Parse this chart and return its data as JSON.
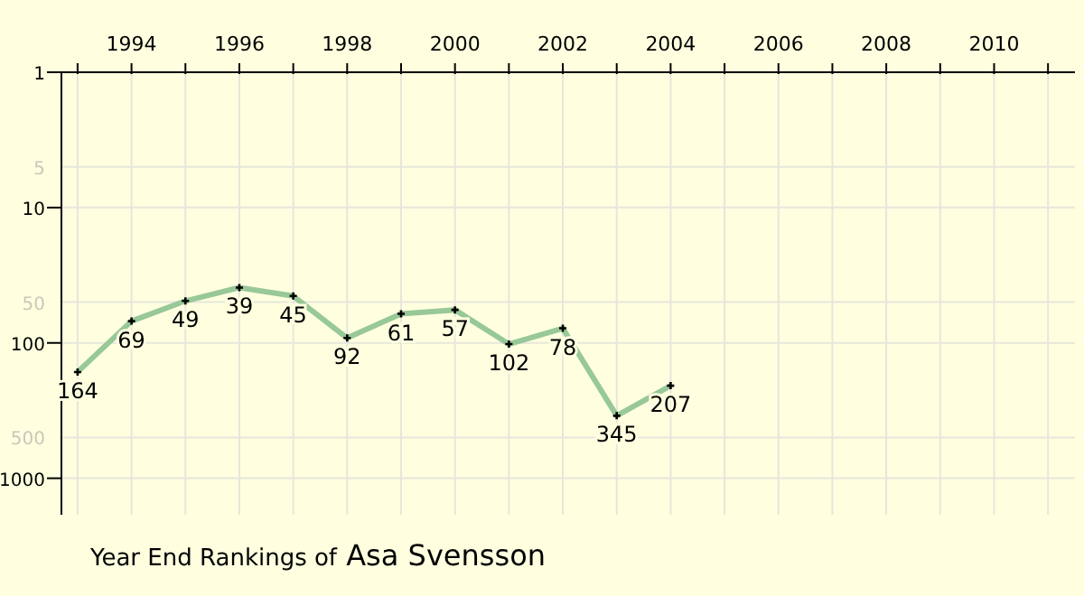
{
  "chart_data": {
    "type": "line",
    "title": "Year End Rankings of",
    "subtitle": "Asa Svensson",
    "x": [
      1993,
      1994,
      1995,
      1996,
      1997,
      1998,
      1999,
      2000,
      2001,
      2002,
      2003,
      2004
    ],
    "series": [
      {
        "color": "#98c898",
        "values": [
          164,
          69,
          49,
          39,
          45,
          92,
          61,
          57,
          102,
          78,
          345,
          207
        ]
      }
    ],
    "xlim": [
      1992.7,
      2011.5
    ],
    "xticks": [
      {
        "value": 1993,
        "label": null
      },
      1994,
      {
        "value": 1995,
        "label": null
      },
      1996,
      {
        "value": 1997,
        "label": null
      },
      1998,
      {
        "value": 1999,
        "label": null
      },
      2000,
      {
        "value": 2001,
        "label": null
      },
      2002,
      {
        "value": 2003,
        "label": null
      },
      2004,
      {
        "value": 2005,
        "label": null
      },
      2006,
      {
        "value": 2007,
        "label": null
      },
      2008,
      {
        "value": 2009,
        "label": null
      },
      2010,
      {
        "value": 2011,
        "label": null
      }
    ],
    "ylim": [
      1860,
      1
    ],
    "yticks": [
      1,
      5,
      10,
      50,
      100,
      500,
      1000
    ],
    "log": "y",
    "grid": true,
    "marker": "cross",
    "line_style": "solid",
    "data_labels": true,
    "legend": false
  }
}
